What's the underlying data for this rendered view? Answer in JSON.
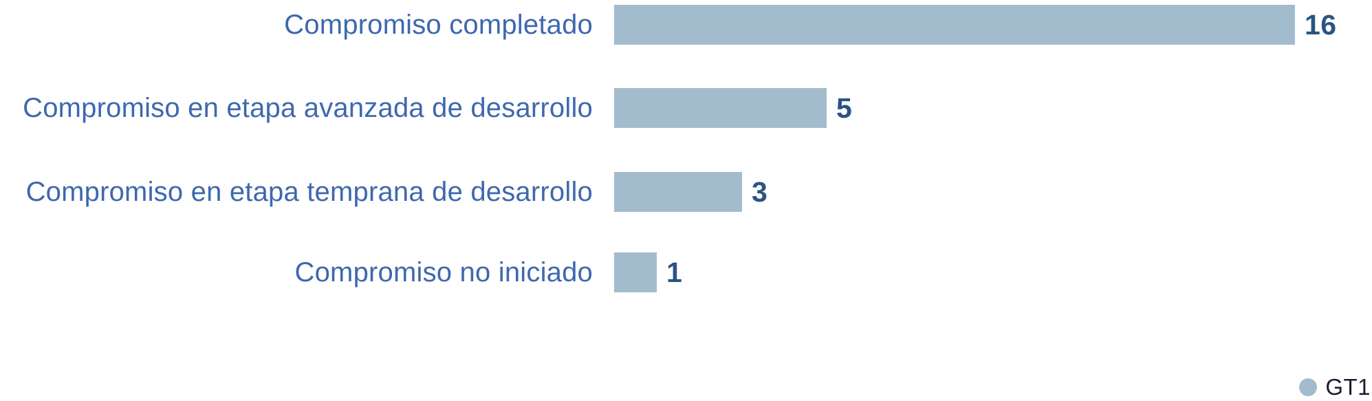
{
  "chart_data": {
    "type": "bar",
    "orientation": "horizontal",
    "title": "",
    "xlabel": "",
    "ylabel": "",
    "categories": [
      "Compromiso completado",
      "Compromiso en etapa avanzada de desarrollo",
      "Compromiso en etapa temprana de desarrollo",
      "Compromiso no iniciado"
    ],
    "series": [
      {
        "name": "GT1",
        "values": [
          16,
          5,
          3,
          1
        ]
      }
    ],
    "values": [
      16,
      5,
      3,
      1
    ],
    "data_labels": [
      16,
      5,
      3,
      1
    ],
    "xlim": [
      0,
      16
    ],
    "grid": false,
    "axes_visible": false,
    "legend_position": "bottom-right",
    "legend_entries": [
      "GT1"
    ]
  },
  "colors": {
    "bar": "#a3bccd",
    "category_label": "#3e68ae",
    "value_label": "#2a5483",
    "legend_text": "#191d2e",
    "background": "#ffffff"
  }
}
